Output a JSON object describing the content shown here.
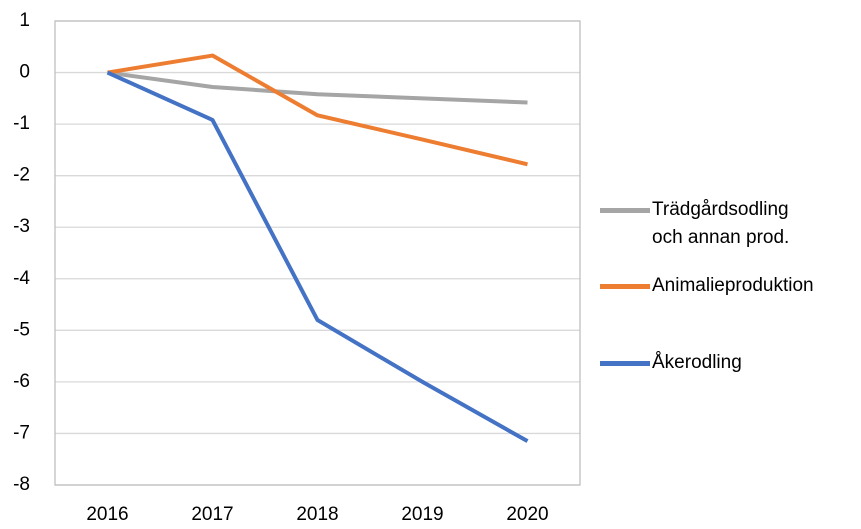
{
  "chart_data": {
    "type": "line",
    "categories": [
      "2016",
      "2017",
      "2018",
      "2019",
      "2020"
    ],
    "series": [
      {
        "name": "Trädgårdsodling och annan prod.",
        "color": "#a5a5a5",
        "values": [
          0,
          -0.28,
          -0.42,
          -0.5,
          -0.58
        ]
      },
      {
        "name": "Animalieproduktion",
        "color": "#ed7d31",
        "values": [
          0,
          0.33,
          -0.83,
          -1.3,
          -1.78
        ]
      },
      {
        "name": "Åkerodling",
        "color": "#4472c4",
        "values": [
          0,
          -0.92,
          -4.8,
          -6.0,
          -7.15
        ]
      }
    ],
    "ylim": [
      -8,
      1
    ],
    "yticks": [
      -8,
      -7,
      -6,
      -5,
      -4,
      -3,
      -2,
      -1,
      0,
      1
    ],
    "grid": true,
    "legend": "right"
  }
}
